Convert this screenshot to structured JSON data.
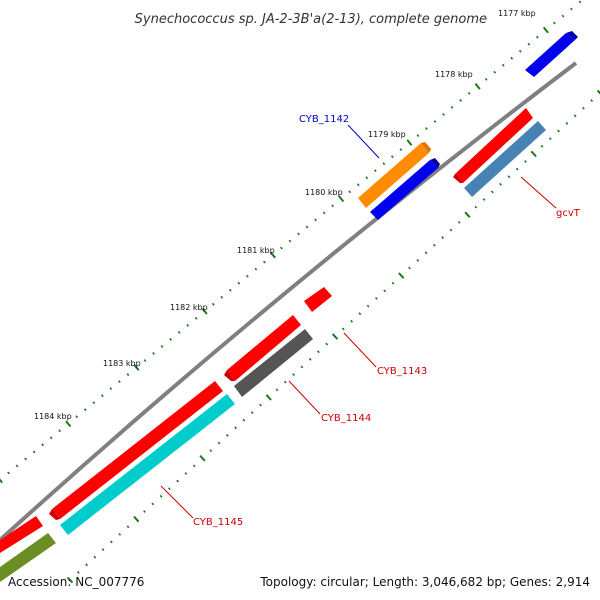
{
  "title": "Synechococcus sp. JA-2-3B'a(2-13), complete genome",
  "footer": {
    "accession": "Accession: NC_007776",
    "summary": "Topology: circular; Length: 3,046,682 bp; Genes: 2,914"
  },
  "ticks": [
    "1177 kbp",
    "1178 kbp",
    "1179 kbp",
    "1180 kbp",
    "1181 kbp",
    "1182 kbp",
    "1183 kbp",
    "1184 kbp"
  ],
  "labels": {
    "cyb1142": "CYB_1142",
    "gcvt": "gcvT",
    "cyb1143": "CYB_1143",
    "cyb1144": "CYB_1144",
    "cyb1145": "CYB_1145"
  },
  "colors": {
    "backbone": "#808080",
    "tick_green": "#1a7a1a",
    "red_gene": "#ff0000",
    "blue_gene": "#0000ee",
    "orange_gene": "#ff8c00",
    "steel_gene": "#4682b4",
    "gray_gene": "#555555",
    "cyan_gene": "#00cccc",
    "olive_gene": "#6b8e23",
    "blue_label": "#0000cc",
    "red_label": "#cc0000"
  }
}
